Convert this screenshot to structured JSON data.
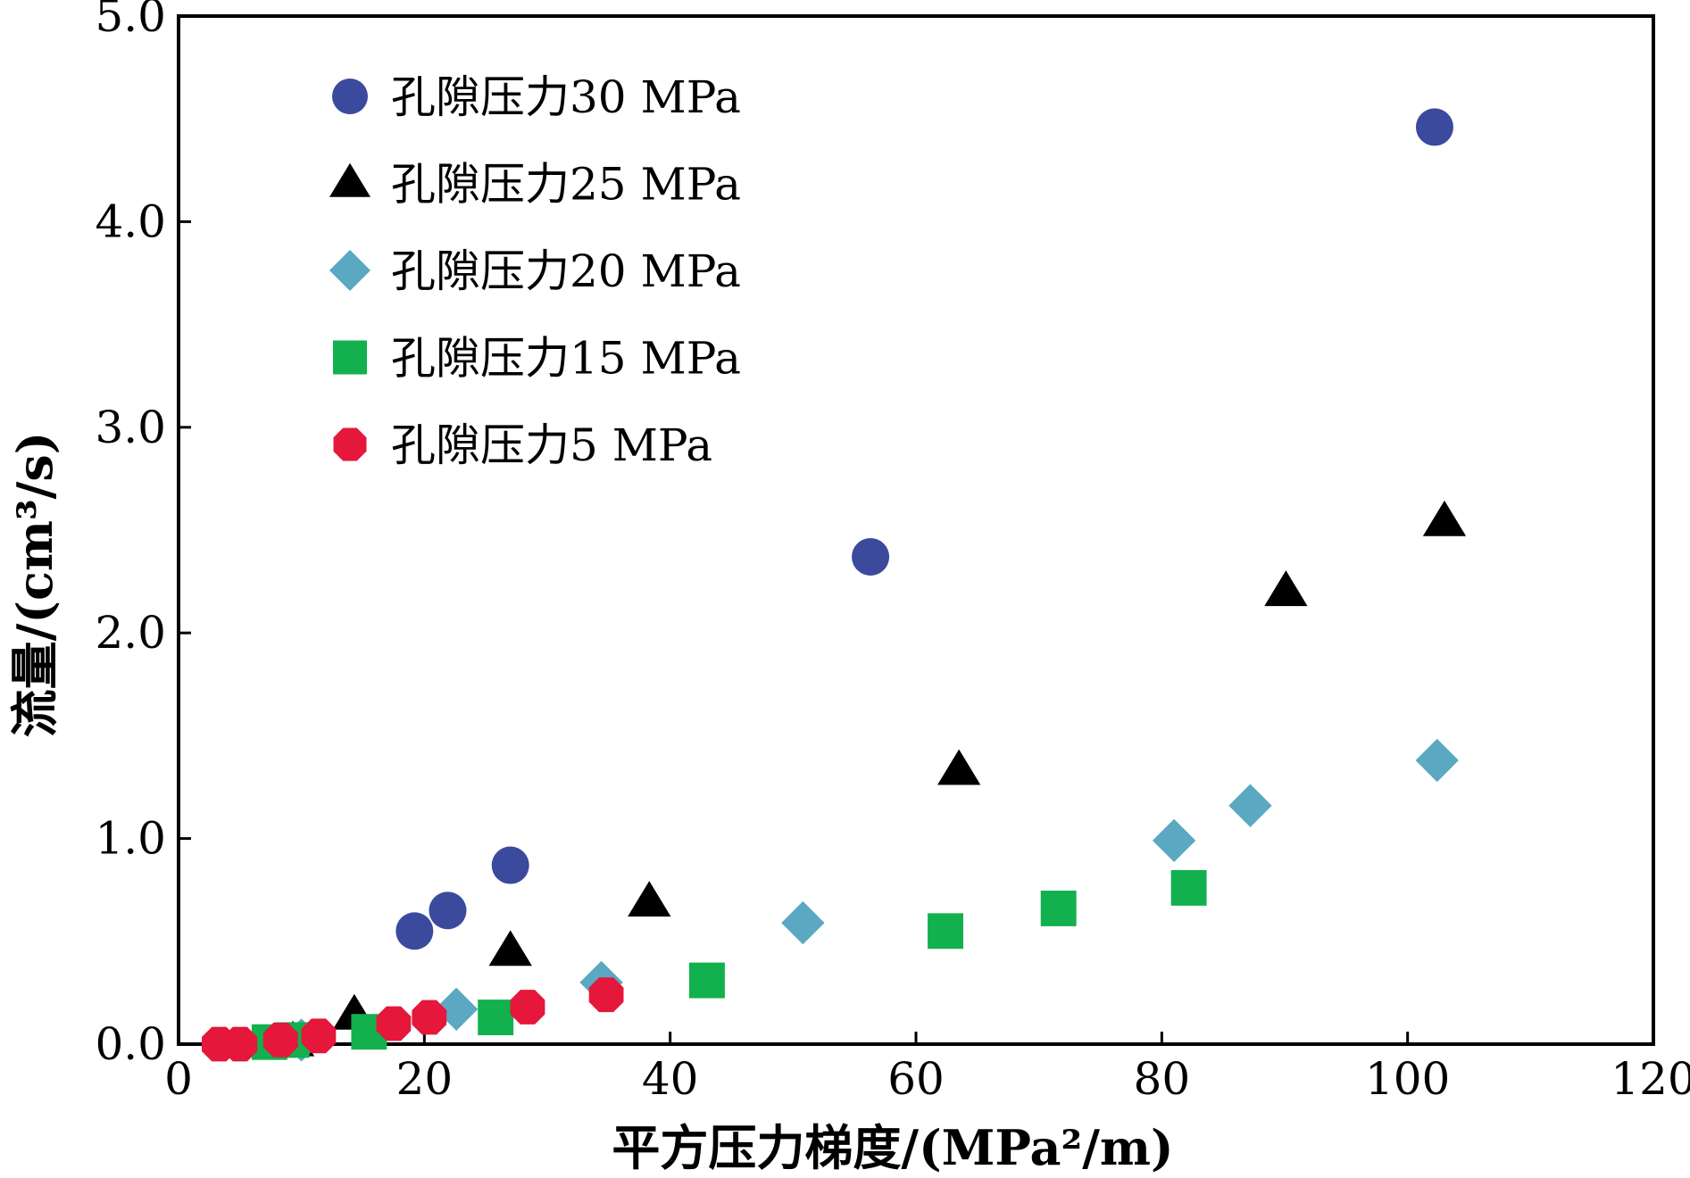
{
  "chart_data": {
    "type": "scatter",
    "title": "",
    "xlabel": "平方压力梯度/(MPa²/m)",
    "ylabel": "流量/(cm³/s)",
    "xlim": [
      0,
      120
    ],
    "ylim": [
      0,
      5.0
    ],
    "x_ticks": [
      0,
      20,
      40,
      60,
      80,
      100,
      120
    ],
    "x_tick_labels": [
      "0",
      "20",
      "40",
      "60",
      "80",
      "100",
      "120"
    ],
    "y_ticks": [
      0,
      1,
      2,
      3,
      4,
      5
    ],
    "y_tick_labels": [
      "0.0",
      "1.0",
      "2.0",
      "3.0",
      "4.0",
      "5.0"
    ],
    "legend_position": "top-left",
    "grid": false,
    "series": [
      {
        "name": "孔隙压力30 MPa",
        "marker": "circle",
        "color": "#3b4a9c",
        "points": [
          [
            19.2,
            0.55
          ],
          [
            21.9,
            0.65
          ],
          [
            27.0,
            0.87
          ],
          [
            56.3,
            2.37
          ],
          [
            102.2,
            4.46
          ]
        ]
      },
      {
        "name": "孔隙压力25 MPa",
        "marker": "triangle",
        "color": "#000000",
        "points": [
          [
            9.3,
            0.01
          ],
          [
            14.3,
            0.14
          ],
          [
            27.0,
            0.45
          ],
          [
            38.3,
            0.69
          ],
          [
            63.5,
            1.33
          ],
          [
            90.1,
            2.2
          ],
          [
            103.0,
            2.54
          ]
        ]
      },
      {
        "name": "孔隙压力20 MPa",
        "marker": "diamond",
        "color": "#5aa8c2",
        "points": [
          [
            10.0,
            0.02
          ],
          [
            22.6,
            0.17
          ],
          [
            34.4,
            0.3
          ],
          [
            50.8,
            0.59
          ],
          [
            81.0,
            0.99
          ],
          [
            87.2,
            1.16
          ],
          [
            102.4,
            1.38
          ]
        ]
      },
      {
        "name": "孔隙压力15 MPa",
        "marker": "square",
        "color": "#12b04e",
        "points": [
          [
            7.4,
            0.01
          ],
          [
            9.2,
            0.02
          ],
          [
            15.5,
            0.06
          ],
          [
            25.8,
            0.13
          ],
          [
            43.0,
            0.31
          ],
          [
            62.4,
            0.55
          ],
          [
            71.6,
            0.66
          ],
          [
            82.2,
            0.76
          ]
        ]
      },
      {
        "name": "孔隙压力5 MPa",
        "marker": "octagon",
        "color": "#e5173a",
        "points": [
          [
            3.3,
            0.0
          ],
          [
            5.0,
            0.0
          ],
          [
            8.3,
            0.02
          ],
          [
            11.4,
            0.04
          ],
          [
            17.5,
            0.1
          ],
          [
            20.4,
            0.13
          ],
          [
            28.4,
            0.18
          ],
          [
            34.8,
            0.24
          ]
        ]
      }
    ]
  }
}
